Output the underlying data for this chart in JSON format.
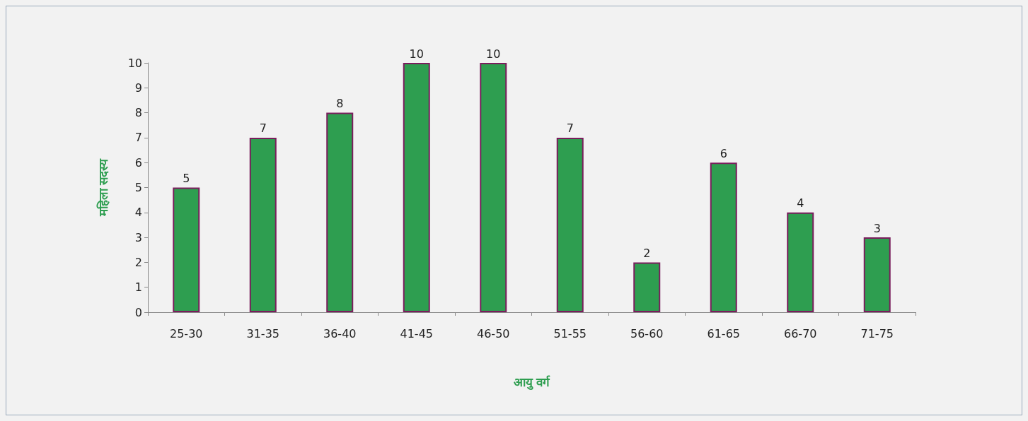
{
  "chart_data": {
    "type": "bar",
    "xlabel": "आयु वर्ग",
    "ylabel": "महिला सदस्य",
    "categories": [
      "25-30",
      "31-35",
      "36-40",
      "41-45",
      "46-50",
      "51-55",
      "56-60",
      "61-65",
      "66-70",
      "71-75"
    ],
    "values": [
      5,
      7,
      8,
      10,
      10,
      7,
      2,
      6,
      4,
      3
    ],
    "color": "#2e9e50",
    "ylim": [
      0,
      10
    ],
    "yticks": [
      0,
      1,
      2,
      3,
      4,
      5,
      6,
      7,
      8,
      9,
      10
    ],
    "grid": false,
    "data_labels": true
  }
}
